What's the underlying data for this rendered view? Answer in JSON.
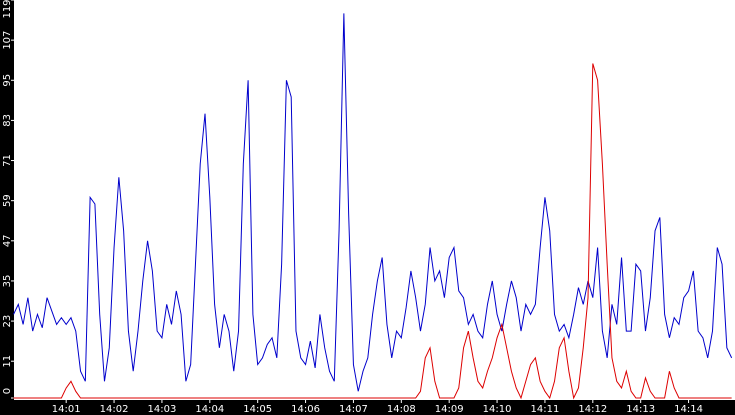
{
  "chart_data": {
    "type": "line",
    "x": [
      -0.1,
      0,
      0.1,
      0.2,
      0.3,
      0.4,
      0.5,
      0.6,
      0.7,
      0.8,
      0.9,
      1,
      1.1,
      1.2,
      1.3,
      1.4,
      1.5,
      1.6,
      1.7,
      1.8,
      1.9,
      2,
      2.1,
      2.2,
      2.3,
      2.4,
      2.5,
      2.6,
      2.7,
      2.8,
      2.9,
      3,
      3.1,
      3.2,
      3.3,
      3.4,
      3.5,
      3.6,
      3.7,
      3.8,
      3.9,
      4,
      4.1,
      4.2,
      4.3,
      4.4,
      4.5,
      4.6,
      4.7,
      4.8,
      4.9,
      5,
      5.1,
      5.2,
      5.3,
      5.4,
      5.5,
      5.6,
      5.7,
      5.8,
      5.9,
      6,
      6.1,
      6.2,
      6.3,
      6.4,
      6.5,
      6.6,
      6.7,
      6.8,
      6.9,
      7,
      7.1,
      7.2,
      7.3,
      7.4,
      7.5,
      7.6,
      7.7,
      7.8,
      7.9,
      8,
      8.1,
      8.2,
      8.3,
      8.4,
      8.5,
      8.6,
      8.7,
      8.8,
      8.9,
      9,
      9.1,
      9.2,
      9.3,
      9.4,
      9.5,
      9.6,
      9.7,
      9.8,
      9.9,
      10,
      10.1,
      10.2,
      10.3,
      10.4,
      10.5,
      10.6,
      10.7,
      10.8,
      10.9,
      11,
      11.1,
      11.2,
      11.3,
      11.4,
      11.5,
      11.6,
      11.7,
      11.8,
      11.9,
      12,
      12.1,
      12.2,
      12.3,
      12.4,
      12.5,
      12.6,
      12.7,
      12.8,
      12.9,
      13,
      13.1,
      13.2,
      13.3,
      13.4,
      13.5,
      13.6,
      13.7,
      13.8,
      13.9,
      14,
      14.1,
      14.2,
      14.3,
      14.4,
      14.5,
      14.6,
      14.7,
      14.8,
      14.9
    ],
    "series": [
      {
        "color": "#0000cc",
        "values": [
          25,
          28,
          22,
          30,
          20,
          25,
          21,
          30,
          26,
          22,
          24,
          22,
          24,
          20,
          8,
          5,
          60,
          58,
          25,
          5,
          15,
          45,
          66,
          50,
          20,
          8,
          20,
          35,
          47,
          38,
          20,
          18,
          28,
          22,
          32,
          25,
          5,
          10,
          40,
          70,
          85,
          60,
          28,
          15,
          25,
          20,
          8,
          20,
          70,
          95,
          25,
          10,
          12,
          16,
          18,
          12,
          40,
          95,
          90,
          20,
          12,
          10,
          17,
          9,
          25,
          15,
          8,
          5,
          50,
          115,
          55,
          10,
          2,
          8,
          12,
          25,
          35,
          42,
          22,
          12,
          20,
          18,
          27,
          38,
          30,
          20,
          28,
          45,
          35,
          38,
          30,
          42,
          45,
          32,
          30,
          22,
          25,
          20,
          18,
          28,
          35,
          25,
          20,
          28,
          35,
          30,
          20,
          28,
          25,
          28,
          45,
          60,
          50,
          25,
          20,
          22,
          18,
          25,
          33,
          28,
          35,
          30,
          45,
          20,
          12,
          28,
          22,
          42,
          20,
          20,
          40,
          38,
          20,
          30,
          50,
          54,
          25,
          18,
          24,
          22,
          30,
          32,
          38,
          20,
          18,
          12,
          20,
          45,
          40,
          15,
          12
        ]
      },
      {
        "color": "#dd0000",
        "values": [
          0,
          0,
          0,
          0,
          0,
          0,
          0,
          0,
          0,
          0,
          0,
          3,
          5,
          2,
          0,
          0,
          0,
          0,
          0,
          0,
          0,
          0,
          0,
          0,
          0,
          0,
          0,
          0,
          0,
          0,
          0,
          0,
          0,
          0,
          0,
          0,
          0,
          0,
          0,
          0,
          0,
          0,
          0,
          0,
          0,
          0,
          0,
          0,
          0,
          0,
          0,
          0,
          0,
          0,
          0,
          0,
          0,
          0,
          0,
          0,
          0,
          0,
          0,
          0,
          0,
          0,
          0,
          0,
          0,
          0,
          0,
          0,
          0,
          0,
          0,
          0,
          0,
          0,
          0,
          0,
          0,
          0,
          0,
          0,
          0,
          2,
          12,
          15,
          5,
          0,
          0,
          0,
          0,
          3,
          15,
          20,
          12,
          5,
          3,
          8,
          12,
          18,
          22,
          15,
          8,
          3,
          0,
          5,
          10,
          12,
          5,
          2,
          0,
          5,
          15,
          18,
          8,
          0,
          3,
          15,
          30,
          100,
          95,
          70,
          40,
          12,
          5,
          3,
          8,
          2,
          0,
          0,
          6,
          2,
          0,
          0,
          0,
          8,
          3,
          0,
          0,
          0,
          0,
          0,
          0,
          0,
          0,
          0,
          0,
          0,
          0
        ]
      }
    ],
    "xlim": [
      -0.09,
      14.97
    ],
    "xticks": [
      {
        "value": 1,
        "label": "14:01"
      },
      {
        "value": 2,
        "label": "14:02"
      },
      {
        "value": 3,
        "label": "14:03"
      },
      {
        "value": 4,
        "label": "14:04"
      },
      {
        "value": 5,
        "label": "14:05"
      },
      {
        "value": 6,
        "label": "14:06"
      },
      {
        "value": 7,
        "label": "14:07"
      },
      {
        "value": 8,
        "label": "14:08"
      },
      {
        "value": 9,
        "label": "14:09"
      },
      {
        "value": 10,
        "label": "14:10"
      },
      {
        "value": 11,
        "label": "14:11"
      },
      {
        "value": 12,
        "label": "14:12"
      },
      {
        "value": 13,
        "label": "14:13"
      },
      {
        "value": 14,
        "label": "14:14"
      }
    ],
    "ylim": [
      0,
      119
    ],
    "yticks": [
      0,
      11,
      23,
      35,
      47,
      59,
      71,
      83,
      95,
      107,
      119
    ]
  }
}
